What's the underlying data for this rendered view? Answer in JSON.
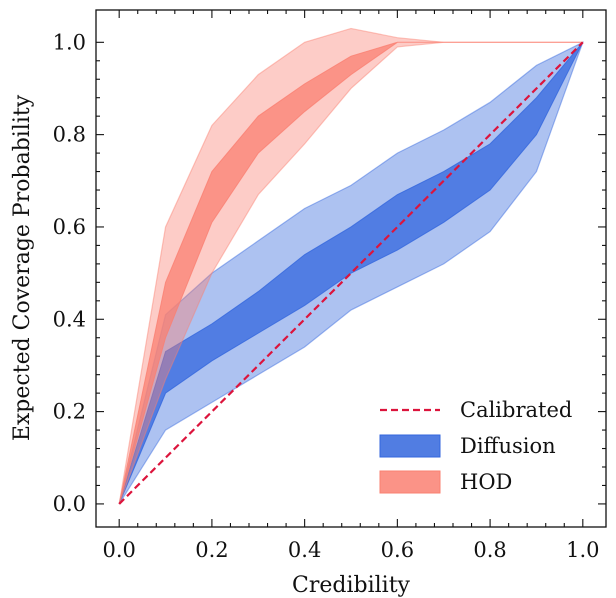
{
  "chart_data": {
    "type": "area",
    "xlabel": "Credibility",
    "ylabel": "Expected Coverage Probability",
    "xlim": [
      -0.05,
      1.05
    ],
    "ylim": [
      -0.05,
      1.07
    ],
    "xticks": [
      "0.0",
      "0.2",
      "0.4",
      "0.6",
      "0.8",
      "1.0"
    ],
    "yticks": [
      "0.0",
      "0.2",
      "0.4",
      "0.6",
      "0.8",
      "1.0"
    ],
    "grid": false,
    "legend_position": "bottom-right",
    "series": [
      {
        "name": "Calibrated",
        "style": "dashed-line",
        "color": "#dc143c",
        "x": [
          0,
          1
        ],
        "y": [
          0,
          1
        ]
      },
      {
        "name": "Diffusion",
        "color": "#3366dd",
        "x": [
          0,
          0.1,
          0.2,
          0.3,
          0.4,
          0.5,
          0.6,
          0.7,
          0.8,
          0.9,
          1.0
        ],
        "inner_lower": [
          0,
          0.24,
          0.31,
          0.37,
          0.43,
          0.5,
          0.55,
          0.61,
          0.68,
          0.8,
          1.0
        ],
        "inner_upper": [
          0,
          0.33,
          0.39,
          0.46,
          0.54,
          0.6,
          0.67,
          0.72,
          0.78,
          0.88,
          1.0
        ],
        "outer_lower": [
          0,
          0.16,
          0.22,
          0.28,
          0.34,
          0.42,
          0.47,
          0.52,
          0.59,
          0.72,
          1.0
        ],
        "outer_upper": [
          0,
          0.41,
          0.5,
          0.57,
          0.64,
          0.69,
          0.76,
          0.81,
          0.87,
          0.95,
          1.0
        ]
      },
      {
        "name": "HOD",
        "color": "#fa8072",
        "x": [
          0,
          0.1,
          0.2,
          0.3,
          0.4,
          0.5,
          0.6,
          0.7,
          0.8,
          0.9,
          1.0
        ],
        "inner_lower": [
          0,
          0.36,
          0.61,
          0.76,
          0.85,
          0.93,
          1.0,
          1.0,
          1.0,
          1.0,
          1.0
        ],
        "inner_upper": [
          0,
          0.48,
          0.72,
          0.84,
          0.91,
          0.97,
          1.0,
          1.0,
          1.0,
          1.0,
          1.0
        ],
        "outer_lower": [
          0,
          0.27,
          0.5,
          0.67,
          0.78,
          0.9,
          0.99,
          1.0,
          1.0,
          1.0,
          1.0
        ],
        "outer_upper": [
          0,
          0.6,
          0.82,
          0.93,
          1.0,
          1.03,
          1.01,
          1.0,
          1.0,
          1.0,
          1.0
        ]
      }
    ]
  }
}
